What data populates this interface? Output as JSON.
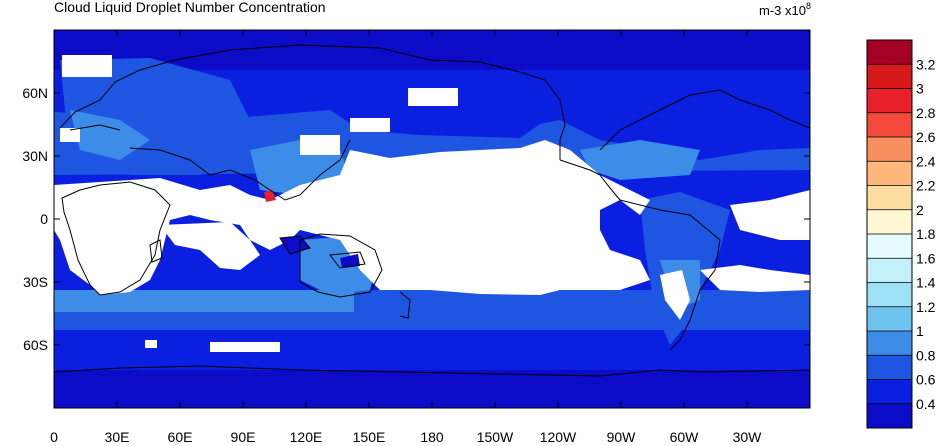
{
  "title": "Cloud Liquid Droplet Number Concentration",
  "units": {
    "base": "m-3 x10",
    "exponent": "8"
  },
  "map": {
    "lat_labels": [
      "60N",
      "30N",
      "0",
      "30S",
      "60S"
    ],
    "lat_values": [
      60,
      30,
      0,
      -30,
      -60
    ],
    "lon_labels": [
      "0",
      "30E",
      "60E",
      "90E",
      "120E",
      "150E",
      "180",
      "150W",
      "120W",
      "90W",
      "60W",
      "30W"
    ],
    "lon_values": [
      0,
      30,
      60,
      90,
      120,
      150,
      180,
      210,
      240,
      270,
      300,
      330
    ],
    "lon_range": [
      0,
      360
    ],
    "lat_range": [
      -90,
      90
    ],
    "missing_color": "#ffffff",
    "background_color": "#0a14e0"
  },
  "colorbar": {
    "labels": [
      "3.2",
      "3",
      "2.8",
      "2.6",
      "2.4",
      "2.2",
      "2",
      "1.8",
      "1.6",
      "1.4",
      "1.2",
      "1",
      "0.8",
      "0.6",
      "0.4"
    ],
    "colors": [
      "#a50026",
      "#d7191c",
      "#e8202a",
      "#f34a3c",
      "#f98e5e",
      "#fdb77a",
      "#fddca0",
      "#fff7d4",
      "#e4fbff",
      "#c3f0fb",
      "#9ee0f6",
      "#6fc3ef",
      "#3d8de8",
      "#1e56e2",
      "#0a1fe0",
      "#0b0bc8"
    ]
  }
}
